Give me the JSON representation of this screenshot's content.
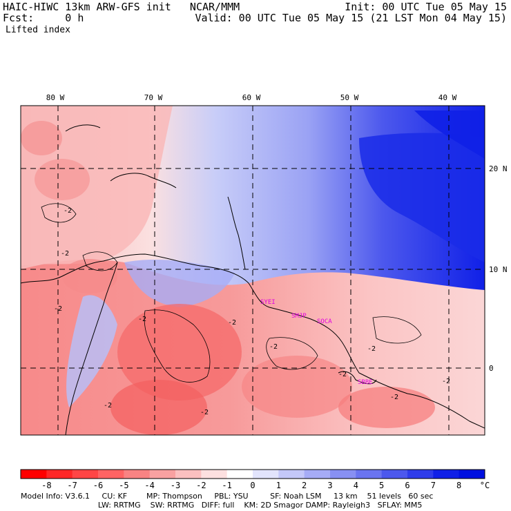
{
  "header": {
    "model_title": "HAIC-HIWC 13km ARW-GFS init   NCAR/MMM",
    "forecast": "Fcst:     0 h",
    "field_name": "Lifted index",
    "init_time": "Init: 00 UTC Tue 05 May 15",
    "valid_time": "Valid: 00 UTC Tue 05 May 15 (21 LST Mon 04 May 15)"
  },
  "map": {
    "lon_labels": [
      "80 W",
      "70 W",
      "60 W",
      "50 W",
      "40 W"
    ],
    "lat_labels": [
      "20 N",
      "10 N",
      "0"
    ],
    "contour_labels": [
      "-2",
      "-2",
      "-2",
      "-2",
      "-2",
      "-2",
      "-2",
      "-2",
      "-2",
      "-2",
      "-2",
      "-2"
    ],
    "stations": [
      "SYEI",
      "SMJP",
      "SOCA",
      "SBBE"
    ],
    "station_color": "#e000e0"
  },
  "colorbar": {
    "ticks": [
      "-8",
      "-7",
      "-6",
      "-5",
      "-4",
      "-3",
      "-2",
      "-1",
      "0",
      "1",
      "2",
      "3",
      "4",
      "5",
      "6",
      "7",
      "8"
    ],
    "unit": "°C",
    "colors": [
      "#ff0000",
      "#ff2626",
      "#ff4545",
      "#ff6363",
      "#f98383",
      "#f9a1a1",
      "#fbc0c0",
      "#fde0e0",
      "#ffffff",
      "#e2e4fc",
      "#c4c8f9",
      "#a6acf6",
      "#8890f3",
      "#6a74f0",
      "#4c58ed",
      "#2e3cea",
      "#1020e7",
      "#0010e0"
    ]
  },
  "footer": {
    "line1": "Model Info: V3.6.1     CU: KF        MP: Thompson     PBL: YSU         SF: Noah LSM     13 km    51 levels   60 sec",
    "line2": "                                LW: RRTMG    SW: RRTMG   DIFF: full    KM: 2D Smagor DAMP: Rayleigh3   SFLAY: MM5"
  }
}
